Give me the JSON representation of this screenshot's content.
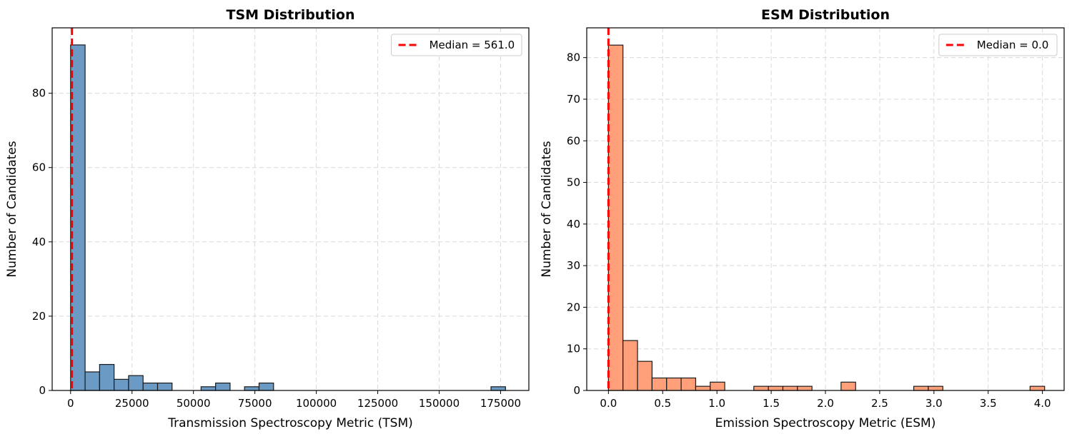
{
  "chart_data": [
    {
      "type": "bar",
      "title": "TSM Distribution",
      "xlabel": "Transmission Spectroscopy Metric (TSM)",
      "ylabel": "Number of Candidates",
      "xlim": [
        -7500,
        186500
      ],
      "ylim": [
        0,
        97.6
      ],
      "xticks": [
        0,
        25000,
        50000,
        75000,
        100000,
        125000,
        150000,
        175000
      ],
      "xtick_labels": [
        "0",
        "25000",
        "50000",
        "75000",
        "100000",
        "125000",
        "150000",
        "175000"
      ],
      "yticks": [
        0,
        20,
        40,
        60,
        80
      ],
      "ytick_labels": [
        "0",
        "20",
        "40",
        "60",
        "80"
      ],
      "bin_start": 0,
      "bin_width": 5900,
      "counts": [
        93,
        5,
        7,
        3,
        4,
        2,
        2,
        0,
        0,
        1,
        2,
        0,
        1,
        2,
        0,
        0,
        0,
        0,
        0,
        0,
        0,
        0,
        0,
        0,
        0,
        0,
        0,
        0,
        0,
        1
      ],
      "bar_color": "#6b9ac4",
      "median": 561.0,
      "median_color": "#ff0000",
      "legend": "Median = 561.0",
      "legend_loc": "upper right",
      "grid": true
    },
    {
      "type": "bar",
      "title": "ESM Distribution",
      "xlabel": "Emission Spectroscopy Metric (ESM)",
      "ylabel": "Number of Candidates",
      "xlim": [
        -0.2,
        4.2
      ],
      "ylim": [
        0,
        87.15
      ],
      "xticks": [
        0.0,
        0.5,
        1.0,
        1.5,
        2.0,
        2.5,
        3.0,
        3.5,
        4.0
      ],
      "xtick_labels": [
        "0.0",
        "0.5",
        "1.0",
        "1.5",
        "2.0",
        "2.5",
        "3.0",
        "3.5",
        "4.0"
      ],
      "yticks": [
        0,
        10,
        20,
        30,
        40,
        50,
        60,
        70,
        80
      ],
      "ytick_labels": [
        "0",
        "10",
        "20",
        "30",
        "40",
        "50",
        "60",
        "70",
        "80"
      ],
      "bin_start": 0.0,
      "bin_width": 0.134,
      "counts": [
        83,
        12,
        7,
        3,
        3,
        3,
        1,
        2,
        0,
        0,
        1,
        1,
        1,
        1,
        0,
        0,
        2,
        0,
        0,
        0,
        0,
        1,
        1,
        0,
        0,
        0,
        0,
        0,
        0,
        1
      ],
      "bar_color": "#ffa07a",
      "median": 0.0,
      "median_color": "#ff0000",
      "legend": "Median = 0.0",
      "legend_loc": "upper right",
      "grid": true
    }
  ]
}
